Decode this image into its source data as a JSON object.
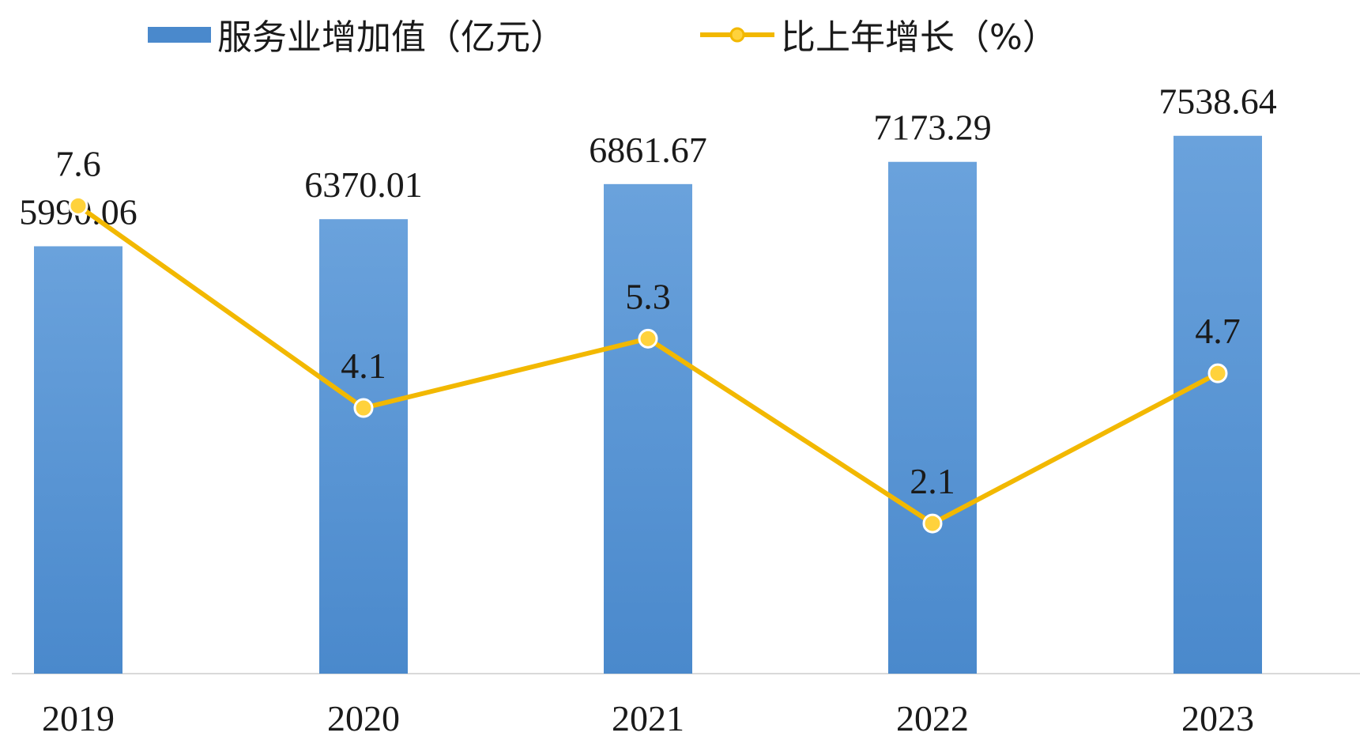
{
  "chart_data": {
    "type": "bar+line",
    "categories": [
      "2019",
      "2020",
      "2021",
      "2022",
      "2023"
    ],
    "series": [
      {
        "name": "服务业增加值（亿元）",
        "type": "bar",
        "axis": "left",
        "values": [
          5990.06,
          6370.01,
          6861.67,
          7173.29,
          7538.64
        ],
        "labels": [
          "5990.06",
          "6370.01",
          "6861.67",
          "7173.29",
          "7538.64"
        ]
      },
      {
        "name": "比上年增长（%）",
        "type": "line",
        "axis": "right",
        "values": [
          7.6,
          4.1,
          5.3,
          2.1,
          4.7
        ],
        "labels": [
          "7.6",
          "4.1",
          "5.3",
          "2.1",
          "4.7"
        ]
      }
    ],
    "bar_ylim": [
      0,
      8500
    ],
    "line_ylim": [
      -0.5,
      10
    ],
    "legend": "top-left",
    "grid": false,
    "colors": {
      "bar": "#4a89cc",
      "bar_light": "#6aa2dc",
      "line": "#f2b800",
      "marker_fill": "#ffd23c",
      "axis": "#d9d9d9"
    }
  }
}
